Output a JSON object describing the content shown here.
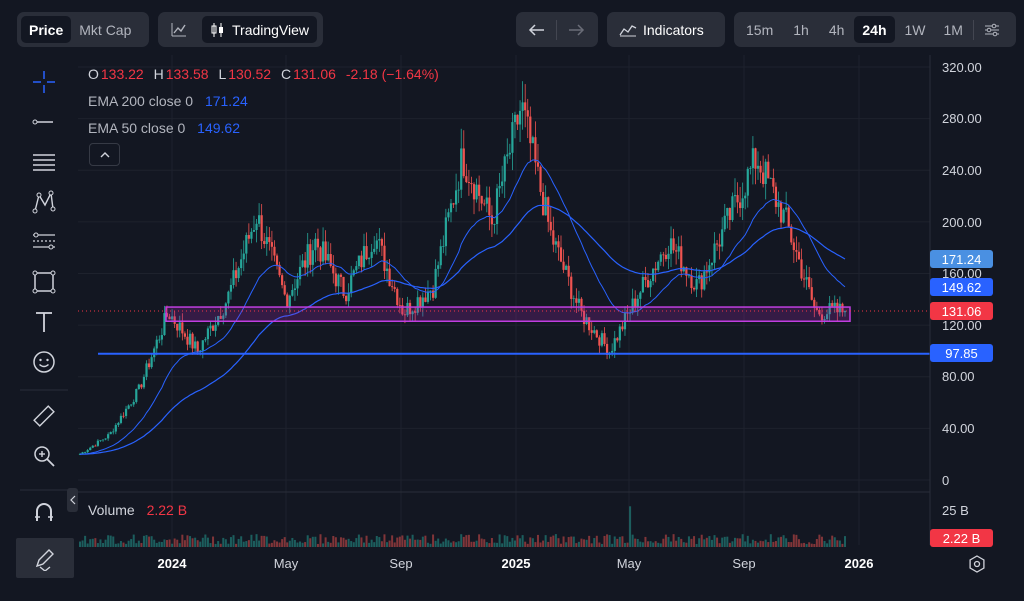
{
  "toolbar": {
    "price_label": "Price",
    "mktcap_label": "Mkt Cap",
    "tradingview_label": "TradingView",
    "indicators_label": "Indicators",
    "timeframes": [
      "15m",
      "1h",
      "4h",
      "24h",
      "1W",
      "1M"
    ],
    "active_timeframe": "24h"
  },
  "legend": {
    "o_label": "O",
    "o_value": "133.22",
    "h_label": "H",
    "h_value": "133.58",
    "l_label": "L",
    "l_value": "130.52",
    "c_label": "C",
    "c_value": "131.06",
    "change": "-2.18 (−1.64%)",
    "ema200_label": "EMA 200 close 0",
    "ema200_value": "171.24",
    "ema50_label": "EMA 50 close 0",
    "ema50_value": "149.62",
    "volume_label": "Volume",
    "volume_value": "2.22 B"
  },
  "price_axis": {
    "labels": [
      "320.00",
      "280.00",
      "240.00",
      "200.00",
      "160.00",
      "120.00",
      "80.00",
      "40.00",
      "0"
    ],
    "tag_ema200": "171.24",
    "tag_ema50": "149.62",
    "tag_close": "131.06",
    "tag_hline": "97.85"
  },
  "volume_axis": {
    "label": "25 B",
    "tag": "2.22 B"
  },
  "time_axis": {
    "labels": [
      "2024",
      "May",
      "Sep",
      "2025",
      "May",
      "Sep",
      "2026"
    ]
  },
  "colors": {
    "background": "#131722",
    "up": "#26a69a",
    "down": "#ef5350",
    "ema200": "#2962ff",
    "ema50": "#2962ff",
    "zone": "#9c27b0",
    "hline": "#2962ff",
    "close_tag": "#f23645"
  },
  "chart_data": {
    "type": "candlestick",
    "ylim": [
      0,
      320
    ],
    "close_price": 131.06,
    "horizontal_line": 97.85,
    "zone": [
      123,
      134
    ],
    "ema200_last": 171.24,
    "ema50_last": 149.62,
    "swing_points": [
      {
        "x": "2023-10",
        "y": 20
      },
      {
        "x": "2023-11",
        "y": 35
      },
      {
        "x": "2023-12",
        "y": 70
      },
      {
        "x": "2024-01",
        "y": 130
      },
      {
        "x": "2024-02",
        "y": 100
      },
      {
        "x": "2024-03",
        "y": 140
      },
      {
        "x": "2024-04",
        "y": 205
      },
      {
        "x": "2024-05",
        "y": 140
      },
      {
        "x": "2024-06",
        "y": 185
      },
      {
        "x": "2024-07",
        "y": 145
      },
      {
        "x": "2024-08",
        "y": 190
      },
      {
        "x": "2024-09",
        "y": 130
      },
      {
        "x": "2024-10",
        "y": 150
      },
      {
        "x": "2024-11",
        "y": 250
      },
      {
        "x": "2024-12",
        "y": 200
      },
      {
        "x": "2025-01",
        "y": 290
      },
      {
        "x": "2025-02",
        "y": 190
      },
      {
        "x": "2025-03",
        "y": 130
      },
      {
        "x": "2025-04",
        "y": 100
      },
      {
        "x": "2025-05",
        "y": 145
      },
      {
        "x": "2025-06",
        "y": 185
      },
      {
        "x": "2025-07",
        "y": 150
      },
      {
        "x": "2025-08",
        "y": 200
      },
      {
        "x": "2025-09",
        "y": 250
      },
      {
        "x": "2025-10",
        "y": 200
      },
      {
        "x": "2025-11",
        "y": 130
      },
      {
        "x": "2025-12",
        "y": 131
      }
    ]
  }
}
